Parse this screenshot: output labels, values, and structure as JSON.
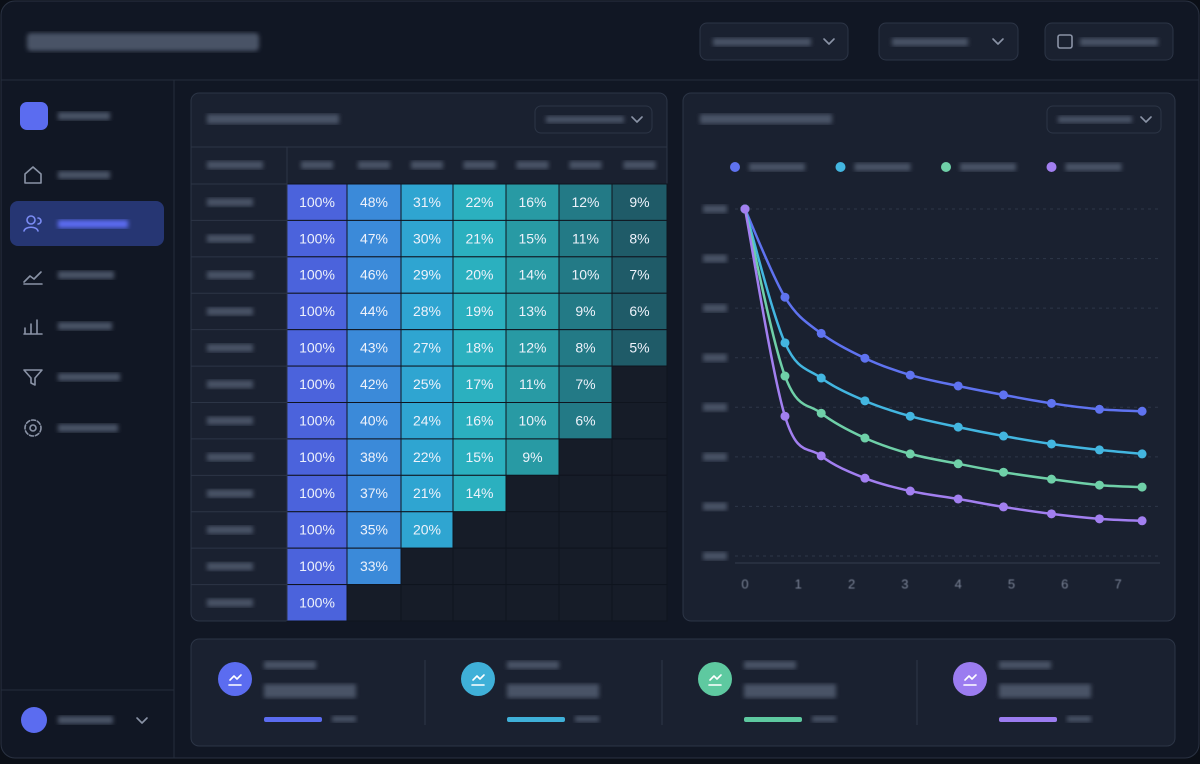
{
  "heatmap": {
    "rows": [
      [
        "100%",
        "48%",
        "31%",
        "22%",
        "16%",
        "12%",
        "9%"
      ],
      [
        "100%",
        "47%",
        "30%",
        "21%",
        "15%",
        "11%",
        "8%"
      ],
      [
        "100%",
        "46%",
        "29%",
        "20%",
        "14%",
        "10%",
        "7%"
      ],
      [
        "100%",
        "44%",
        "28%",
        "19%",
        "13%",
        "9%",
        "6%"
      ],
      [
        "100%",
        "43%",
        "27%",
        "18%",
        "12%",
        "8%",
        "5%"
      ],
      [
        "100%",
        "42%",
        "25%",
        "17%",
        "11%",
        "7%"
      ],
      [
        "100%",
        "40%",
        "24%",
        "16%",
        "10%",
        "6%"
      ],
      [
        "100%",
        "38%",
        "22%",
        "15%",
        "9%"
      ],
      [
        "100%",
        "37%",
        "21%",
        "14%"
      ],
      [
        "100%",
        "35%",
        "20%"
      ],
      [
        "100%",
        "33%"
      ],
      [
        "100%"
      ]
    ]
  },
  "chart_data": {
    "type": "line",
    "x": [
      0,
      0.75,
      1.43,
      2.25,
      3.1,
      4,
      4.85,
      5.75,
      6.65,
      7.45
    ],
    "xlim": [
      0,
      7.8
    ],
    "xticks": [
      0,
      1,
      2,
      3,
      4,
      5,
      6,
      7
    ],
    "ylim": [
      30,
      100
    ],
    "yticks": [
      30,
      40,
      50,
      60,
      70,
      80,
      90,
      100
    ],
    "grid": true,
    "series": [
      {
        "color": "#5f73f0",
        "values": [
          100,
          82.2,
          74.9,
          69.9,
          66.5,
          64.3,
          62.5,
          60.8,
          59.6,
          59.2
        ]
      },
      {
        "color": "#43b6e0",
        "values": [
          100,
          73,
          65.9,
          61.3,
          58.2,
          56,
          54.2,
          52.6,
          51.4,
          50.6
        ]
      },
      {
        "color": "#6fd0a8",
        "values": [
          100,
          66.3,
          58.8,
          53.8,
          50.6,
          48.6,
          46.9,
          45.5,
          44.3,
          43.9
        ]
      },
      {
        "color": "#a27ff0",
        "values": [
          100,
          58.2,
          50.2,
          45.7,
          43.1,
          41.5,
          39.9,
          38.5,
          37.5,
          37.1
        ]
      }
    ]
  }
}
